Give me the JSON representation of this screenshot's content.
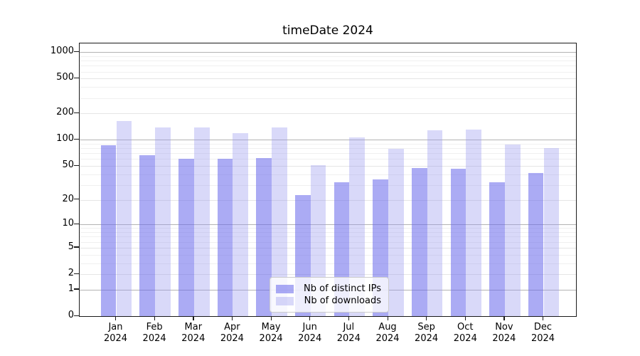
{
  "title": "timeDate 2024",
  "chart_data": {
    "type": "bar",
    "title": "timeDate 2024",
    "xlabel": "",
    "ylabel": "",
    "categories": [
      "Jan",
      "Feb",
      "Mar",
      "Apr",
      "May",
      "Jun",
      "Jul",
      "Aug",
      "Sep",
      "Oct",
      "Nov",
      "Dec"
    ],
    "year_label": "2024",
    "series": [
      {
        "name": "Nb of distinct IPs",
        "values": [
          86,
          66,
          61,
          61,
          62,
          23,
          32,
          35,
          47,
          46,
          32,
          41
        ]
      },
      {
        "name": "Nb of downloads",
        "values": [
          164,
          138,
          138,
          120,
          140,
          51,
          106,
          79,
          129,
          132,
          88,
          80
        ]
      }
    ],
    "yscale": "log1p",
    "y_ticks": [
      0,
      1,
      2,
      5,
      10,
      20,
      50,
      100,
      200,
      500,
      1000
    ],
    "y_minor_ticks": [
      3,
      4,
      6,
      7,
      8,
      9,
      30,
      40,
      60,
      70,
      80,
      90,
      300,
      400,
      600,
      700,
      800,
      900
    ],
    "ylim": [
      0,
      1257
    ],
    "grid": true,
    "legend_position": "lower center"
  },
  "legend": {
    "items": [
      {
        "label": "Nb of distinct IPs"
      },
      {
        "label": "Nb of downloads"
      }
    ]
  },
  "colors": {
    "ips_bar": "#6666eb",
    "ips_bar_alpha": 0.55,
    "downloads_bar": "#9999f0",
    "downloads_bar_alpha": 0.37,
    "gridline_decade": "#b3b3b3",
    "gridline_major": "#e5e5e5",
    "gridline_minor": "#f0f0f0",
    "axis": "#1a1a1a"
  }
}
